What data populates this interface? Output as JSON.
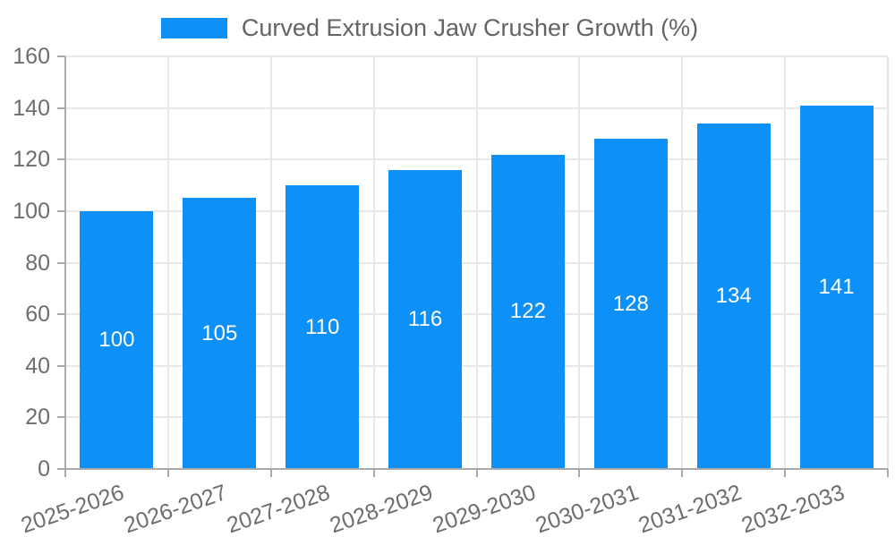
{
  "chart_data": {
    "type": "bar",
    "title": "Curved Extrusion Jaw Crusher Growth (%)",
    "categories": [
      "2025-2026",
      "2026-2027",
      "2027-2028",
      "2028-2029",
      "2029-2030",
      "2030-2031",
      "2031-2032",
      "2032-2033"
    ],
    "values": [
      100,
      105,
      110,
      116,
      122,
      128,
      134,
      141
    ],
    "xlabel": "",
    "ylabel": "",
    "ylim": [
      0,
      160
    ],
    "yticks": [
      0,
      20,
      40,
      60,
      80,
      100,
      120,
      140,
      160
    ],
    "grid": true,
    "legend_position": "top-center",
    "x_label_rotation_deg": -19,
    "bar_labels_inside": true,
    "colors": {
      "bar": "#0d90f7",
      "bar_label": "#ffffff",
      "axis": "#a9a9a9",
      "gridline": "#e8e8e8",
      "tick_label": "#6d6d6d",
      "legend_text": "#636363",
      "background": "#ffffff"
    }
  }
}
